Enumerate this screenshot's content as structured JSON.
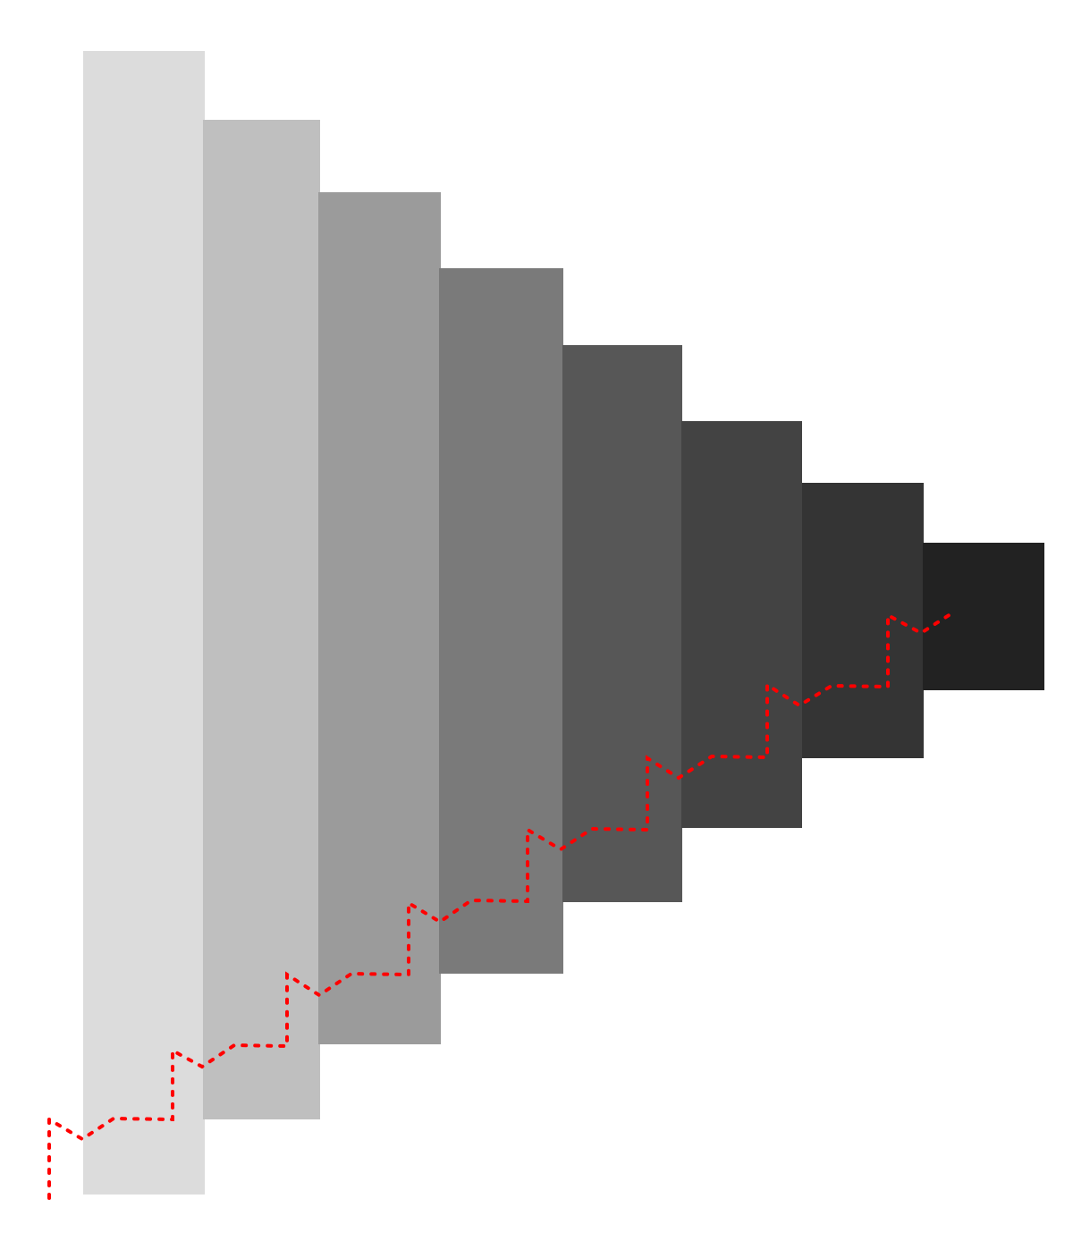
{
  "diagram": {
    "description_type": "stepped funnel of shaded bands with dotted staircase path",
    "band_colors": [
      "#dcdcdc",
      "#bfbfbf",
      "#9b9b9b",
      "#7a7a7a",
      "#575757",
      "#434343",
      "#343434",
      "#222222"
    ],
    "path_color": "#ff0000",
    "path_style": "dotted"
  }
}
